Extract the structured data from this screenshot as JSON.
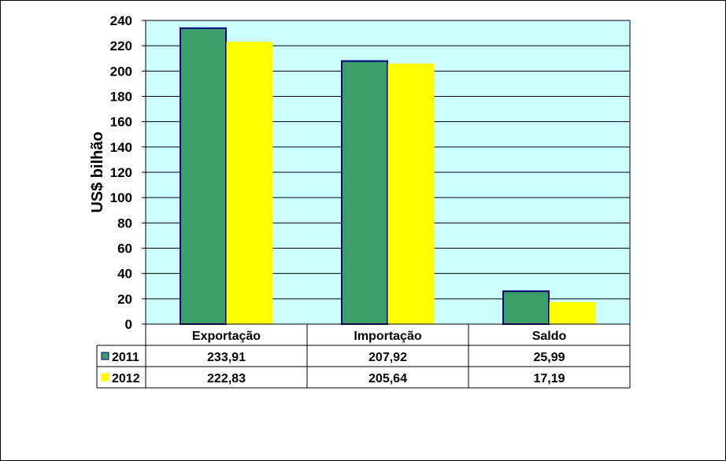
{
  "chart_data": {
    "type": "bar",
    "categories": [
      "Exportação",
      "Importação",
      "Saldo"
    ],
    "series": [
      {
        "name": "2011",
        "values": [
          233.91,
          207.92,
          25.99
        ],
        "labels": [
          "233,91",
          "207,92",
          "25,99"
        ],
        "color": "#3A9F6B"
      },
      {
        "name": "2012",
        "values": [
          222.83,
          205.64,
          17.19
        ],
        "labels": [
          "222,83",
          "205,64",
          "17,19"
        ],
        "color": "#FFFF00"
      }
    ],
    "ylabel": "US$ bilhão",
    "ylim": [
      0,
      240
    ],
    "yticks": [
      "0",
      "20",
      "40",
      "60",
      "80",
      "100",
      "120",
      "140",
      "160",
      "180",
      "200",
      "220",
      "240"
    ],
    "plot_background": "#CCFFFF",
    "grid": true,
    "legend": "data-table"
  }
}
